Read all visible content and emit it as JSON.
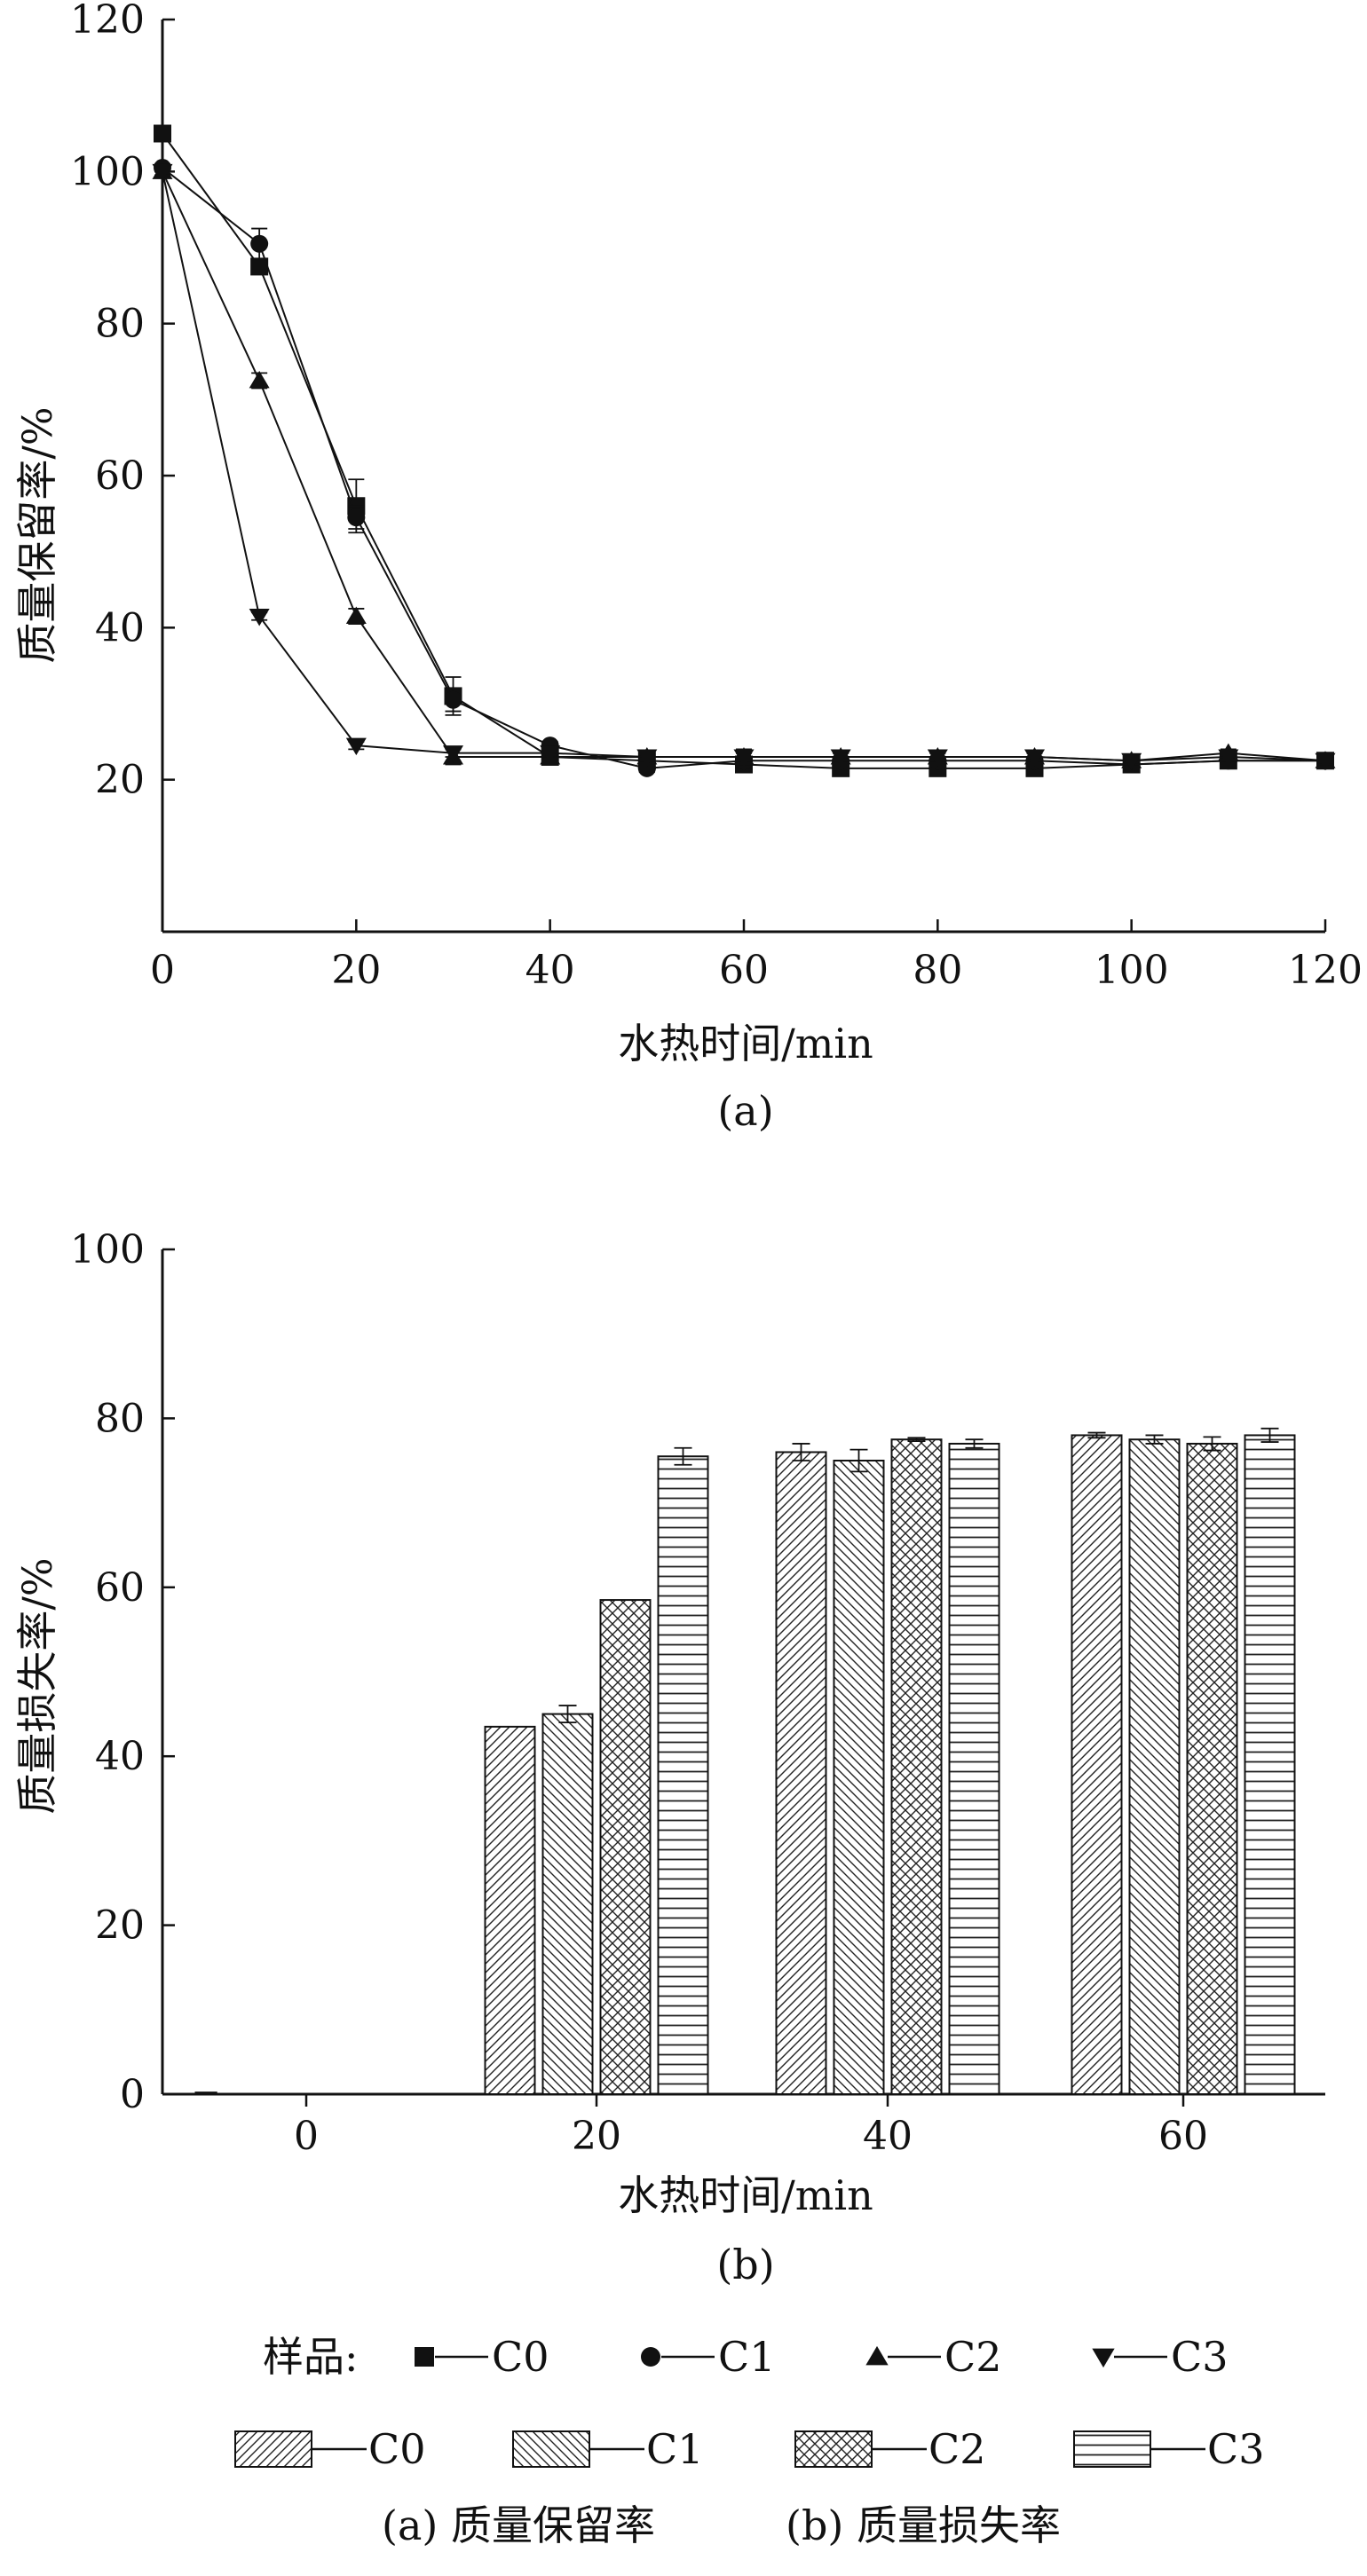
{
  "chart_data": [
    {
      "id": "a",
      "type": "line",
      "panel_label": "(a)",
      "xlabel": "水热时间/min",
      "ylabel": "质量保留率/%",
      "xlim": [
        0,
        120
      ],
      "ylim": [
        0,
        120
      ],
      "xticks": [
        "0",
        "20",
        "40",
        "60",
        "80",
        "100",
        "120"
      ],
      "yticks": [
        "20",
        "40",
        "60",
        "80",
        "100",
        "120"
      ],
      "x": [
        0,
        10,
        20,
        30,
        40,
        50,
        60,
        70,
        80,
        90,
        100,
        110,
        120
      ],
      "series": [
        {
          "name": "C0",
          "marker": "square",
          "values": [
            105,
            87.5,
            56,
            31,
            23,
            22.5,
            22,
            21.5,
            21.5,
            21.5,
            22,
            22.5,
            22.5
          ],
          "errors": [
            0.5,
            1,
            3.5,
            2.5,
            0.5,
            0.5,
            0.5,
            0.5,
            0.5,
            0.5,
            0.5,
            0.5,
            0.5
          ]
        },
        {
          "name": "C1",
          "marker": "circle",
          "values": [
            100.5,
            90.5,
            54.5,
            30.5,
            24.5,
            21.5,
            22.5,
            22.5,
            22.5,
            22.5,
            22,
            22.5,
            22.5
          ],
          "errors": [
            0.5,
            2,
            1.5,
            1.5,
            0.5,
            0.5,
            1,
            0.5,
            0.5,
            0.5,
            0.5,
            1,
            0.5
          ]
        },
        {
          "name": "C2",
          "marker": "triangle-up",
          "values": [
            100,
            72.5,
            41.5,
            23,
            23,
            23,
            23,
            23,
            23,
            23,
            22.5,
            23.5,
            22.5
          ],
          "errors": [
            0.5,
            1,
            1,
            1,
            0.5,
            0.5,
            1,
            0.5,
            0.5,
            0.5,
            0.5,
            0.5,
            0.5
          ]
        },
        {
          "name": "C3",
          "marker": "triangle-down",
          "values": [
            100,
            41.5,
            24.5,
            23.5,
            23.5,
            23,
            23,
            23,
            23,
            23,
            22.5,
            23,
            22.5
          ],
          "errors": [
            0.5,
            0.5,
            0.5,
            0.5,
            0.5,
            0.5,
            0.5,
            0.5,
            0.5,
            0.5,
            0.5,
            0.5,
            0.5
          ]
        }
      ]
    },
    {
      "id": "b",
      "type": "bar",
      "panel_label": "(b)",
      "xlabel": "水热时间/min",
      "ylabel": "质量损失率/%",
      "ylim": [
        0,
        100
      ],
      "yticks": [
        "0",
        "20",
        "40",
        "60",
        "80",
        "100"
      ],
      "categories": [
        "0",
        "20",
        "40",
        "60"
      ],
      "series": [
        {
          "name": "C0",
          "pattern": "diag-right",
          "values": [
            0.2,
            43.5,
            76,
            78
          ],
          "errors": [
            0,
            0,
            1,
            0.3
          ]
        },
        {
          "name": "C1",
          "pattern": "diag-left",
          "values": [
            0,
            45,
            75,
            77.5
          ],
          "errors": [
            0,
            1,
            1.3,
            0.5
          ]
        },
        {
          "name": "C2",
          "pattern": "crosshatch",
          "values": [
            0,
            58.5,
            77.5,
            77
          ],
          "errors": [
            0,
            0,
            0.2,
            0.8
          ]
        },
        {
          "name": "C3",
          "pattern": "horizontal",
          "values": [
            0,
            75.5,
            77,
            78
          ],
          "errors": [
            0,
            1,
            0.5,
            0.8
          ]
        }
      ]
    }
  ],
  "legend": {
    "prefix": "样品:",
    "line_items": [
      "C0",
      "C1",
      "C2",
      "C3"
    ],
    "bar_items": [
      "C0",
      "C1",
      "C2",
      "C3"
    ]
  },
  "caption": {
    "a": "(a) 质量保留率",
    "b": "(b) 质量损失率"
  }
}
